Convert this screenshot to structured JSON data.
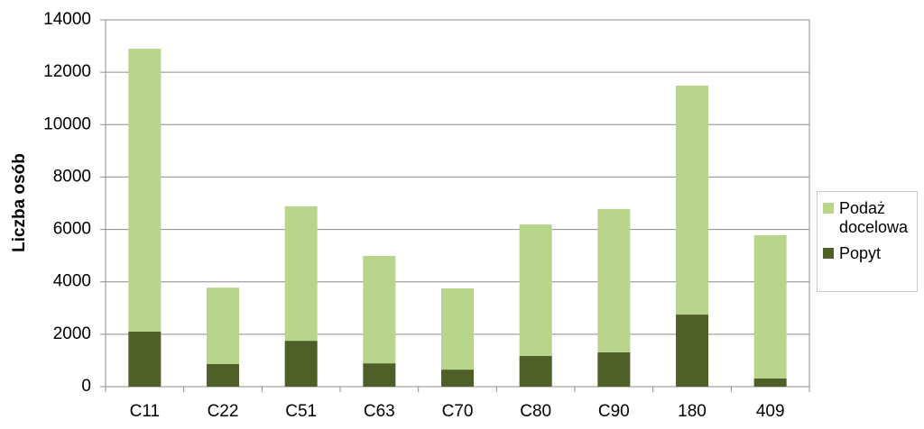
{
  "chart_data": {
    "type": "stacked-bar",
    "y_label": "Liczba osób",
    "categories": [
      "C11",
      "C22",
      "C51",
      "C63",
      "C70",
      "C80",
      "C90",
      "180",
      "409"
    ],
    "series": [
      {
        "name": "Podaż docelowa",
        "color": "#b9d58c",
        "values": [
          10800,
          2920,
          5130,
          4100,
          3100,
          5020,
          5470,
          8740,
          5470
        ]
      },
      {
        "name": "Popyt",
        "color": "#4f5f28",
        "values": [
          2100,
          860,
          1750,
          890,
          650,
          1170,
          1310,
          2750,
          310
        ]
      }
    ],
    "ylim": [
      0,
      14000
    ],
    "yticks": [
      0,
      2000,
      4000,
      6000,
      8000,
      10000,
      12000,
      14000
    ],
    "grid": true,
    "legend": "right"
  }
}
